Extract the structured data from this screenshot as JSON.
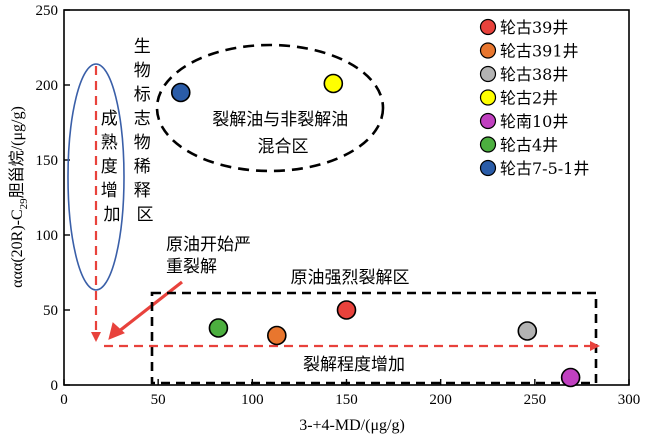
{
  "chart_data": {
    "type": "scatter",
    "xlabel": "3-+4-MD/(μg/g)",
    "ylabel_parts": {
      "pre": "ααα(20R)-C",
      "sub": "29",
      "post": "胆甾烷/(μg/g)"
    },
    "xlim": [
      0,
      300
    ],
    "ylim": [
      0,
      250
    ],
    "xticks": [
      0,
      50,
      100,
      150,
      200,
      250,
      300
    ],
    "yticks": [
      0,
      50,
      100,
      150,
      200,
      250
    ],
    "grid": false,
    "legend_position": "top-right",
    "series": [
      {
        "name": "轮古39井",
        "color": "#e8423c",
        "points": [
          [
            150,
            50
          ]
        ]
      },
      {
        "name": "轮古391井",
        "color": "#e8762e",
        "points": [
          [
            113,
            33
          ]
        ]
      },
      {
        "name": "轮古38井",
        "color": "#b3b3b3",
        "points": [
          [
            246,
            36
          ]
        ]
      },
      {
        "name": "轮古2井",
        "color": "#ffff00",
        "points": [
          [
            143,
            201
          ]
        ]
      },
      {
        "name": "轮南10井",
        "color": "#c040c0",
        "points": [
          [
            269,
            5
          ]
        ]
      },
      {
        "name": "轮古4井",
        "color": "#4caf3f",
        "points": [
          [
            82,
            38
          ]
        ]
      },
      {
        "name": "轮古7-5-1井",
        "color": "#2a5ca8",
        "points": [
          [
            62,
            195
          ]
        ]
      }
    ],
    "annotations": {
      "maturity_ellipse_text": [
        "成",
        "熟",
        "度",
        "增",
        "加"
      ],
      "biomarker_release_text": [
        "生",
        "物",
        "标",
        "志",
        "物",
        "稀",
        "释",
        "区"
      ],
      "mixed_zone_text": [
        "裂解油与非裂解油",
        "混合区"
      ],
      "severe_cracking_start_text": [
        "原油开始严",
        "重裂解"
      ],
      "strong_cracking_zone_text": "原油强烈裂解区",
      "cracking_increase_text": "裂解程度增加"
    }
  }
}
